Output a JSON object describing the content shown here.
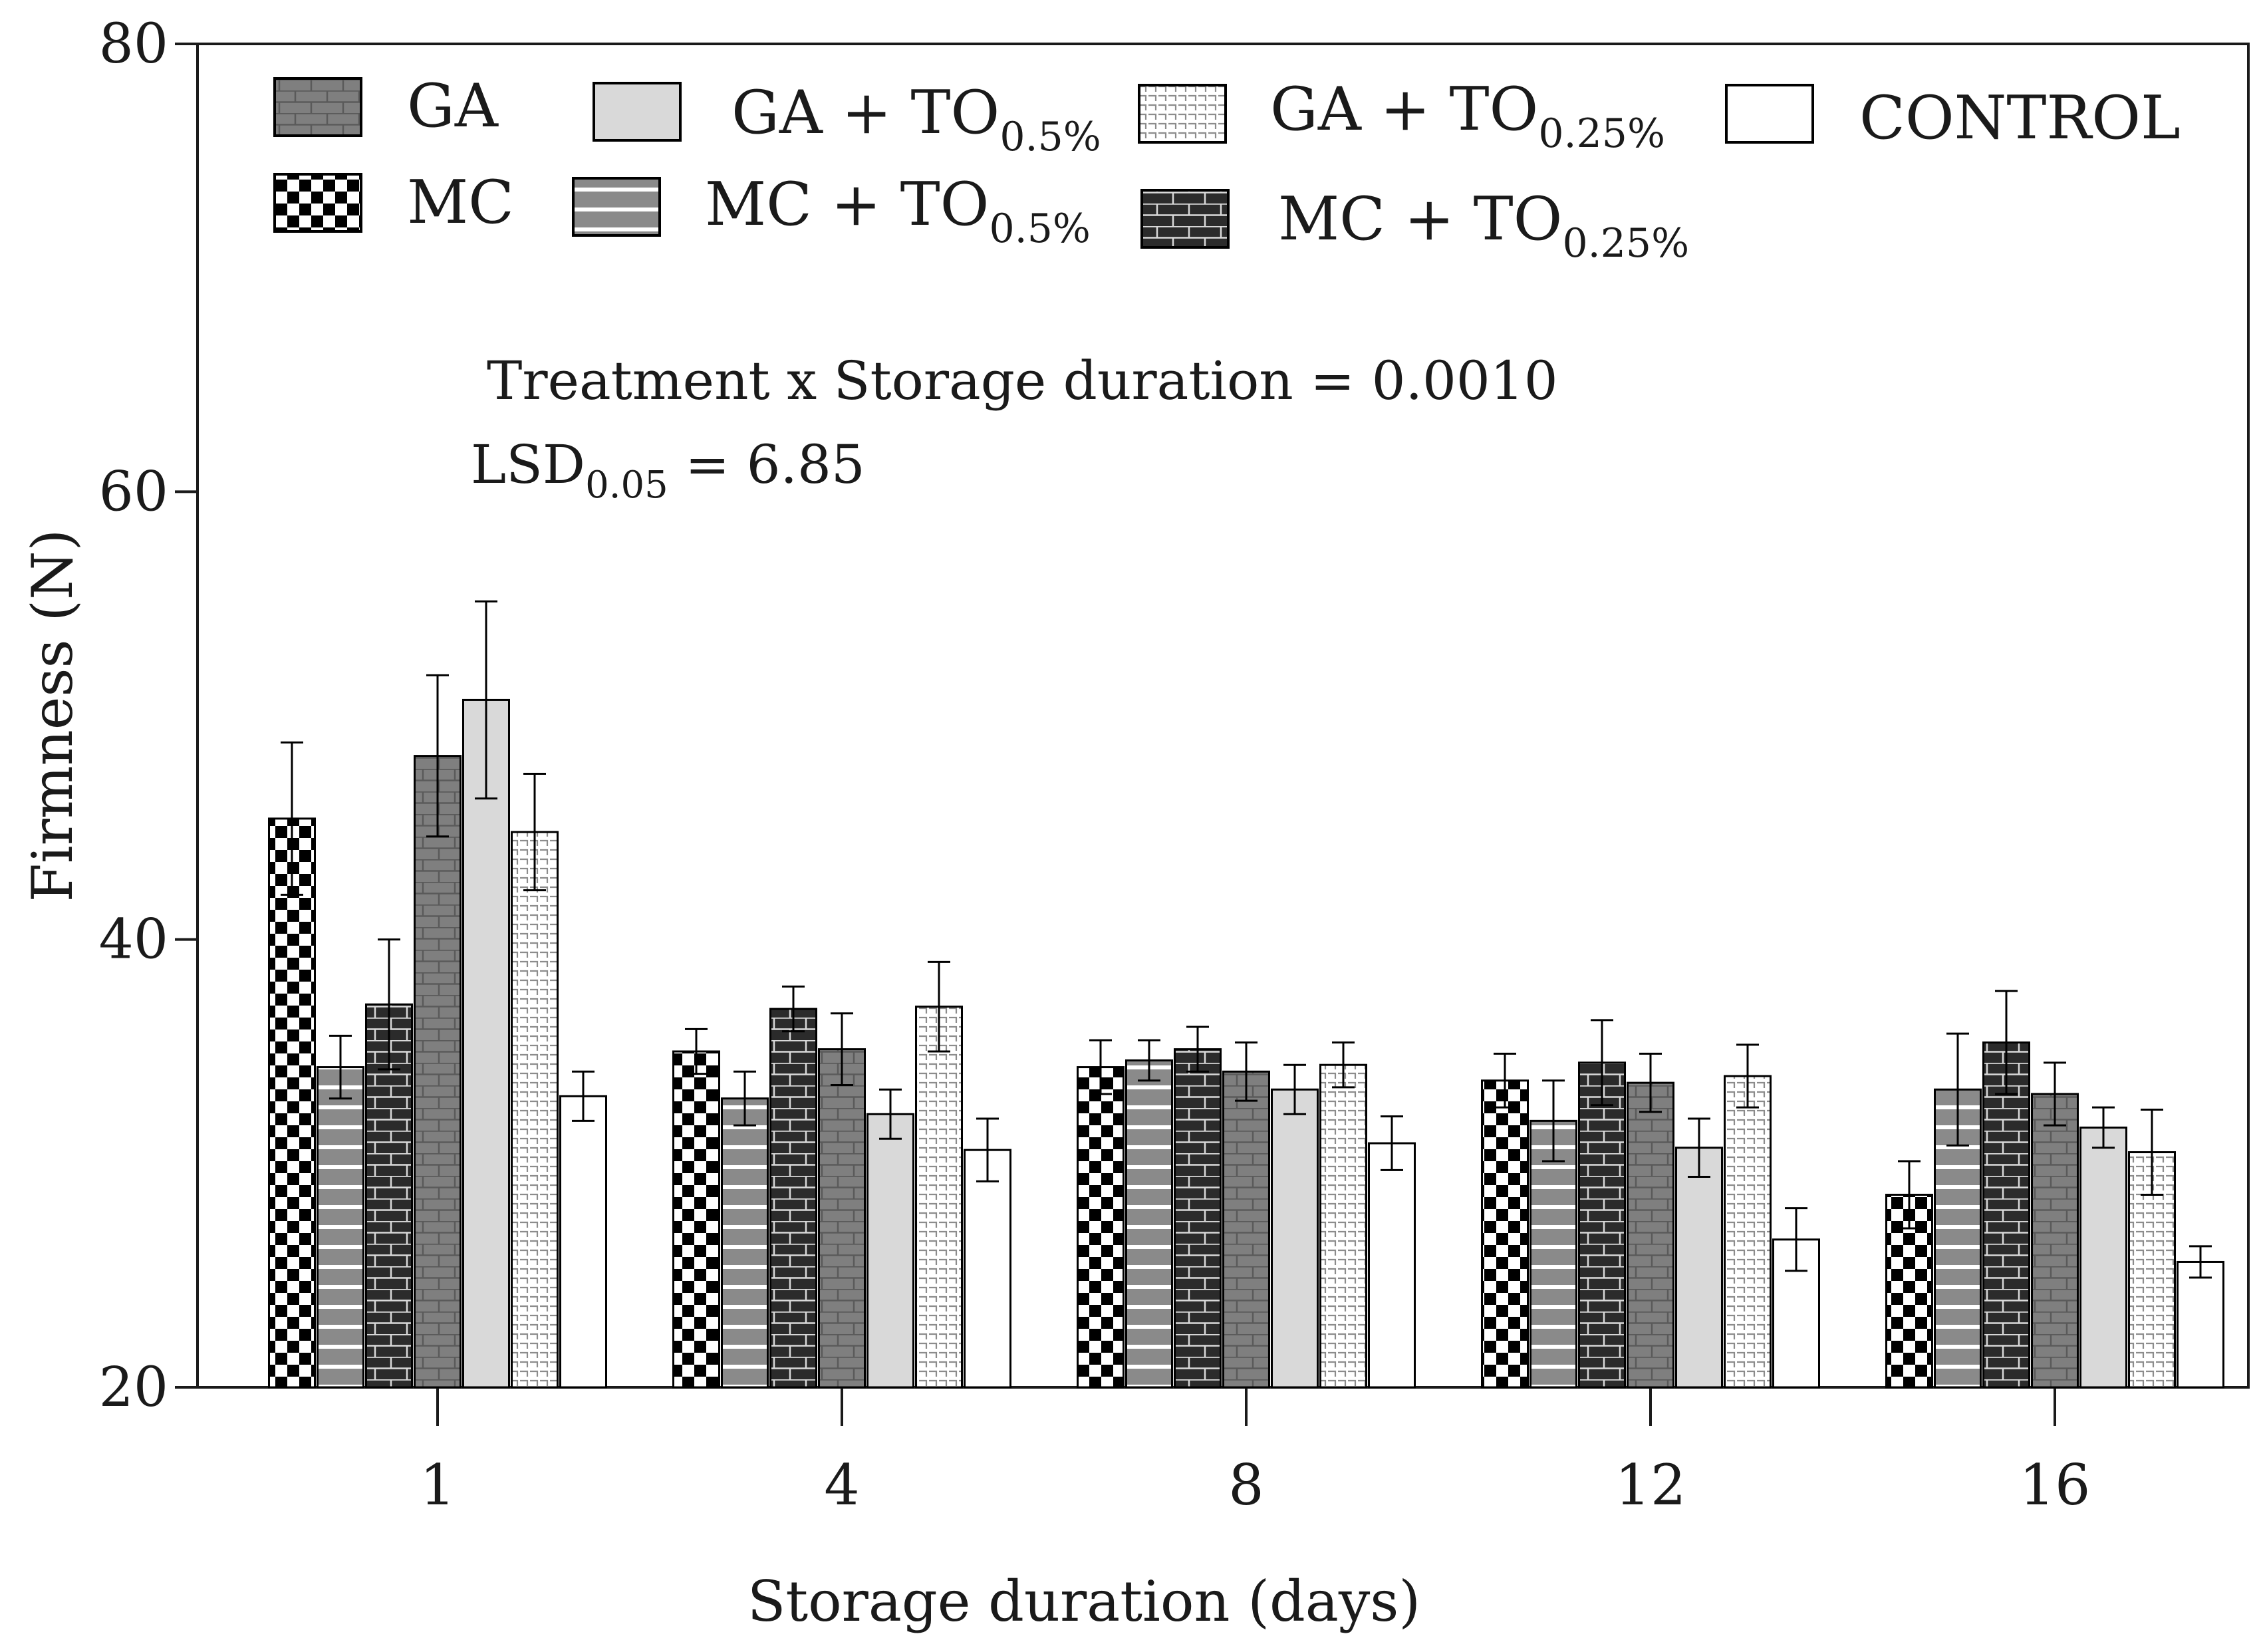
{
  "chart_data": {
    "type": "bar",
    "title": "",
    "xlabel": "Storage duration (days)",
    "ylabel": "Firmness  (N)",
    "ylim": [
      20,
      80
    ],
    "yticks": [
      20,
      40,
      60,
      80
    ],
    "grid": false,
    "legend_position": "top",
    "categories": [
      "1",
      "4",
      "8",
      "12",
      "16"
    ],
    "series": [
      {
        "name": "MC",
        "name_parts": [
          "MC",
          ""
        ],
        "pattern": "checker",
        "values": [
          45.4,
          35.0,
          34.3,
          33.7,
          28.6
        ],
        "errors": [
          3.4,
          1.0,
          1.2,
          1.2,
          1.5
        ]
      },
      {
        "name": "MC + TO0.5%",
        "name_parts": [
          "MC + TO",
          "0.5%"
        ],
        "pattern": "hlines",
        "values": [
          34.3,
          32.9,
          34.6,
          31.9,
          33.3
        ],
        "errors": [
          1.4,
          1.2,
          0.9,
          1.8,
          2.5
        ]
      },
      {
        "name": "MC + TO0.25%",
        "name_parts": [
          "MC + TO",
          "0.25%"
        ],
        "pattern": "brick-dark",
        "values": [
          37.1,
          36.9,
          35.1,
          34.5,
          35.4
        ],
        "errors": [
          2.9,
          1.0,
          1.0,
          1.9,
          2.3
        ]
      },
      {
        "name": "GA",
        "name_parts": [
          "GA",
          ""
        ],
        "pattern": "brick-gray",
        "values": [
          48.2,
          35.1,
          34.1,
          33.6,
          33.1
        ],
        "errors": [
          3.6,
          1.6,
          1.3,
          1.3,
          1.4
        ]
      },
      {
        "name": "GA + TO0.5%",
        "name_parts": [
          "GA + TO",
          "0.5%"
        ],
        "pattern": "solid-light",
        "values": [
          50.7,
          32.2,
          33.3,
          30.7,
          31.6
        ],
        "errors": [
          4.4,
          1.1,
          1.1,
          1.3,
          0.9
        ]
      },
      {
        "name": "GA + TO0.25%",
        "name_parts": [
          "GA + TO",
          "0.25%"
        ],
        "pattern": "dashed-light",
        "values": [
          44.8,
          37.0,
          34.4,
          33.9,
          30.5
        ],
        "errors": [
          2.6,
          2.0,
          1.0,
          1.4,
          1.9
        ]
      },
      {
        "name": "CONTROL",
        "name_parts": [
          "CONTROL",
          ""
        ],
        "pattern": "white",
        "values": [
          33.0,
          30.6,
          30.9,
          26.6,
          25.6
        ],
        "errors": [
          1.1,
          1.4,
          1.2,
          1.4,
          0.7
        ]
      }
    ],
    "annotations": [
      {
        "text": "Treatment x Storage duration  = 0.0010",
        "sub": ""
      },
      {
        "text": "LSD",
        "sub": "0.05",
        "suffix": " = 6.85"
      }
    ]
  }
}
